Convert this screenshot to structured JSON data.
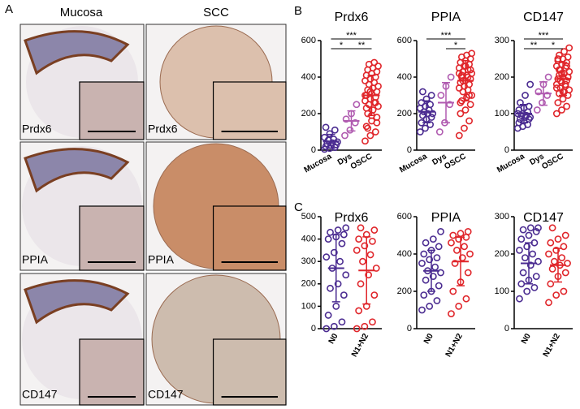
{
  "panel_a": {
    "label": "A",
    "columns": [
      "Mucosa",
      "SCC"
    ],
    "rows": [
      "Prdx6",
      "PPIA",
      "CD147"
    ]
  },
  "panel_b_label": "B",
  "panel_c_label": "C",
  "chart_data": [
    {
      "type": "strip",
      "title": "Prdx6",
      "categories": [
        "Mucosa",
        "Dys",
        "OSCC"
      ],
      "ylim": [
        0,
        600
      ],
      "yticks": [
        0,
        200,
        400,
        600
      ],
      "groups": [
        {
          "color": "#4b2c91",
          "values": [
            5,
            10,
            15,
            20,
            25,
            30,
            35,
            40,
            45,
            55,
            60,
            70,
            90,
            110,
            125
          ],
          "mean": 48,
          "sd": 38
        },
        {
          "color": "#b05bb0",
          "values": [
            80,
            110,
            150,
            170,
            200,
            250
          ],
          "mean": 160,
          "sd": 55
        },
        {
          "color": "#e0262b",
          "values": [
            50,
            80,
            100,
            130,
            160,
            180,
            200,
            220,
            240,
            250,
            260,
            270,
            280,
            290,
            300,
            310,
            320,
            330,
            340,
            350,
            360,
            370,
            380,
            390,
            400,
            410,
            420,
            430,
            440,
            450,
            460,
            470,
            480,
            300,
            320,
            260,
            230,
            190,
            150,
            120
          ],
          "mean": 300,
          "sd": 110
        }
      ],
      "annotations": [
        {
          "text": "***",
          "from": 0,
          "to": 2,
          "level": 1
        },
        {
          "text": "*",
          "from": 0,
          "to": 1,
          "level": 0
        },
        {
          "text": "**",
          "from": 1,
          "to": 2,
          "level": 0
        }
      ]
    },
    {
      "type": "strip",
      "title": "PPIA",
      "categories": [
        "Mucosa",
        "Dys",
        "OSCC"
      ],
      "ylim": [
        0,
        600
      ],
      "yticks": [
        0,
        200,
        400,
        600
      ],
      "groups": [
        {
          "color": "#4b2c91",
          "values": [
            100,
            120,
            140,
            150,
            170,
            180,
            190,
            200,
            200,
            210,
            220,
            230,
            240,
            250,
            260,
            280,
            300,
            320
          ],
          "mean": 210,
          "sd": 60
        },
        {
          "color": "#b05bb0",
          "values": [
            100,
            150,
            250,
            300,
            350,
            400
          ],
          "mean": 260,
          "sd": 110
        },
        {
          "color": "#e0262b",
          "values": [
            80,
            120,
            160,
            200,
            220,
            250,
            270,
            290,
            300,
            320,
            330,
            340,
            350,
            360,
            370,
            380,
            390,
            400,
            410,
            420,
            430,
            440,
            450,
            460,
            470,
            480,
            490,
            500,
            510,
            520,
            530,
            380,
            400,
            420,
            350,
            300,
            260,
            460,
            440,
            410
          ],
          "mean": 380,
          "sd": 110
        }
      ],
      "annotations": [
        {
          "text": "***",
          "from": 0,
          "to": 2,
          "level": 1
        },
        {
          "text": "*",
          "from": 1,
          "to": 2,
          "level": 0
        }
      ]
    },
    {
      "type": "strip",
      "title": "CD147",
      "categories": [
        "Mucosa",
        "Dys",
        "OSCC"
      ],
      "ylim": [
        0,
        300
      ],
      "yticks": [
        0,
        100,
        200,
        300
      ],
      "groups": [
        {
          "color": "#4b2c91",
          "values": [
            60,
            65,
            70,
            75,
            80,
            85,
            85,
            90,
            90,
            95,
            95,
            100,
            100,
            105,
            110,
            115,
            120,
            130,
            150,
            180
          ],
          "mean": 100,
          "sd": 25
        },
        {
          "color": "#b05bb0",
          "values": [
            110,
            130,
            150,
            160,
            180,
            200
          ],
          "mean": 155,
          "sd": 32
        },
        {
          "color": "#e0262b",
          "values": [
            100,
            110,
            120,
            130,
            140,
            150,
            155,
            160,
            165,
            170,
            175,
            180,
            185,
            190,
            195,
            200,
            200,
            205,
            210,
            215,
            220,
            225,
            230,
            235,
            240,
            245,
            250,
            255,
            260,
            270,
            280,
            190,
            180,
            170,
            210,
            230,
            250,
            160,
            200,
            220
          ],
          "mean": 195,
          "sd": 45
        }
      ],
      "annotations": [
        {
          "text": "***",
          "from": 0,
          "to": 2,
          "level": 1
        },
        {
          "text": "**",
          "from": 0,
          "to": 1,
          "level": 0
        },
        {
          "text": "*",
          "from": 1,
          "to": 2,
          "level": 0
        }
      ]
    },
    {
      "type": "strip",
      "title": "Prdx6",
      "categories": [
        "N0",
        "N1+N2"
      ],
      "ylim": [
        0,
        500
      ],
      "yticks": [
        0,
        100,
        200,
        300,
        400,
        500
      ],
      "groups": [
        {
          "color": "#4b2c91",
          "values": [
            0,
            10,
            30,
            60,
            100,
            150,
            180,
            200,
            240,
            270,
            300,
            320,
            340,
            380,
            400,
            410,
            420,
            430,
            440,
            450
          ],
          "mean": 270,
          "sd": 150
        },
        {
          "color": "#e0262b",
          "values": [
            0,
            10,
            30,
            80,
            100,
            150,
            200,
            240,
            270,
            300,
            330,
            350,
            370,
            390,
            400,
            420,
            440,
            450
          ],
          "mean": 260,
          "sd": 150
        }
      ],
      "annotations": []
    },
    {
      "type": "strip",
      "title": "PPIA",
      "categories": [
        "N0",
        "N1+N2"
      ],
      "ylim": [
        0,
        600
      ],
      "yticks": [
        0,
        200,
        400,
        600
      ],
      "groups": [
        {
          "color": "#4b2c91",
          "values": [
            100,
            120,
            150,
            180,
            200,
            230,
            260,
            280,
            300,
            310,
            330,
            350,
            370,
            380,
            400,
            420,
            440,
            460,
            480,
            520
          ],
          "mean": 310,
          "sd": 110
        },
        {
          "color": "#e0262b",
          "values": [
            80,
            120,
            160,
            200,
            250,
            300,
            350,
            380,
            400,
            420,
            440,
            460,
            480,
            490,
            500,
            510,
            520
          ],
          "mean": 360,
          "sd": 130
        }
      ],
      "annotations": []
    },
    {
      "type": "strip",
      "title": "CD147",
      "categories": [
        "N0",
        "N1+N2"
      ],
      "ylim": [
        0,
        300
      ],
      "yticks": [
        0,
        100,
        200,
        300
      ],
      "groups": [
        {
          "color": "#4b2c91",
          "values": [
            80,
            100,
            110,
            120,
            130,
            140,
            150,
            170,
            180,
            190,
            200,
            210,
            220,
            230,
            240,
            250,
            260,
            265,
            270,
            270
          ],
          "mean": 175,
          "sd": 55
        },
        {
          "color": "#e0262b",
          "values": [
            70,
            90,
            100,
            120,
            140,
            150,
            160,
            170,
            175,
            180,
            190,
            200,
            210,
            220,
            230,
            240,
            250,
            270
          ],
          "mean": 170,
          "sd": 45
        }
      ],
      "annotations": []
    }
  ]
}
